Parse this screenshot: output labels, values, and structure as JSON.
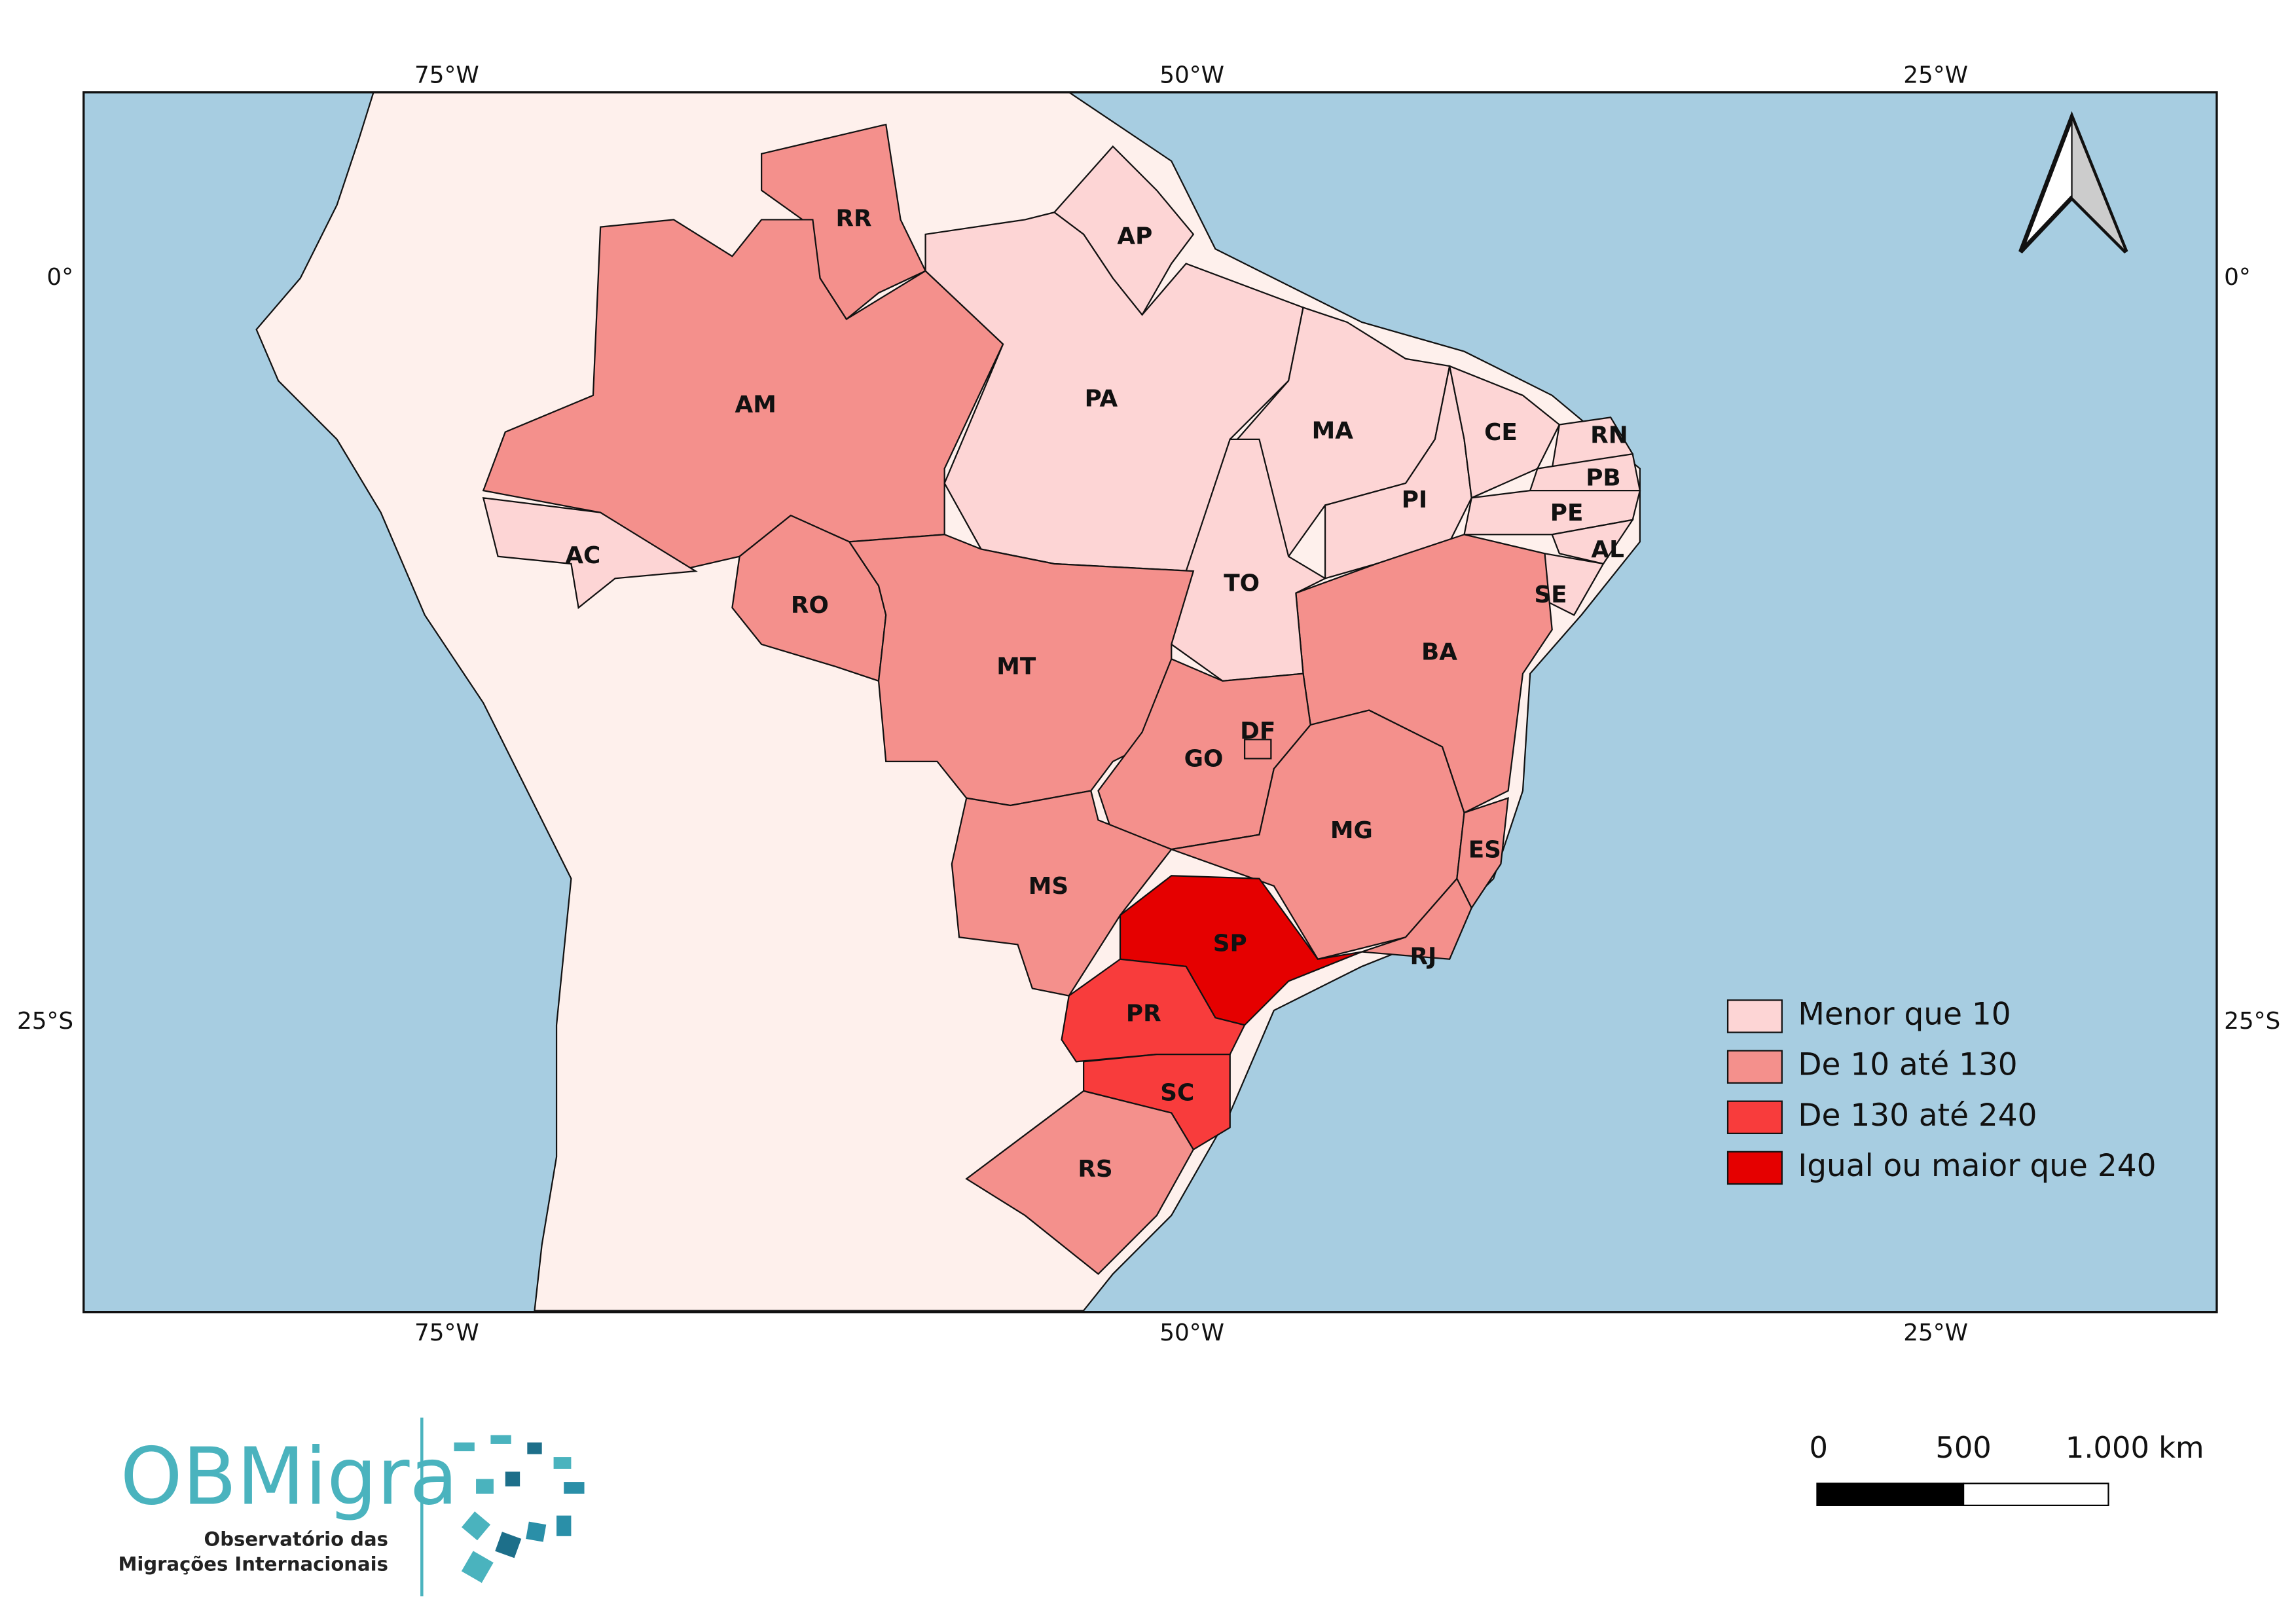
{
  "map": {
    "axis_labels": {
      "top": [
        "75°W",
        "50°W",
        "25°W"
      ],
      "bottom": [
        "75°W",
        "50°W",
        "25°W"
      ],
      "left": [
        "0°",
        "25°S"
      ],
      "right": [
        "0°",
        "25°S"
      ]
    },
    "states": [
      {
        "code": "RR",
        "color": "#f4908c"
      },
      {
        "code": "AM",
        "color": "#f4908c"
      },
      {
        "code": "AP",
        "color": "#fdd5d5"
      },
      {
        "code": "PA",
        "color": "#fdd5d5"
      },
      {
        "code": "MA",
        "color": "#fdd5d5"
      },
      {
        "code": "PI",
        "color": "#fdd5d5"
      },
      {
        "code": "CE",
        "color": "#fdd5d5"
      },
      {
        "code": "RN",
        "color": "#fdd5d5"
      },
      {
        "code": "PB",
        "color": "#fdd5d5"
      },
      {
        "code": "PE",
        "color": "#fdd5d5"
      },
      {
        "code": "AL",
        "color": "#fdd5d5"
      },
      {
        "code": "SE",
        "color": "#fdd5d5"
      },
      {
        "code": "BA",
        "color": "#f4908c"
      },
      {
        "code": "TO",
        "color": "#fdd5d5"
      },
      {
        "code": "AC",
        "color": "#fdd5d5"
      },
      {
        "code": "RO",
        "color": "#f4908c"
      },
      {
        "code": "MT",
        "color": "#f4908c"
      },
      {
        "code": "GO",
        "color": "#f4908c"
      },
      {
        "code": "DF",
        "color": "#f4908c"
      },
      {
        "code": "MG",
        "color": "#f4908c"
      },
      {
        "code": "ES",
        "color": "#f4908c"
      },
      {
        "code": "RJ",
        "color": "#f4908c"
      },
      {
        "code": "MS",
        "color": "#f4908c"
      },
      {
        "code": "SP",
        "color": "#e50000"
      },
      {
        "code": "PR",
        "color": "#f83c3c"
      },
      {
        "code": "SC",
        "color": "#f83c3c"
      },
      {
        "code": "RS",
        "color": "#f4908c"
      }
    ],
    "legend": [
      {
        "label": "Menor que 10",
        "color": "#fdd5d5"
      },
      {
        "label": "De 10 até 130",
        "color": "#f4908c"
      },
      {
        "label": "De 130 até 240",
        "color": "#f83c3c"
      },
      {
        "label": "Igual ou maior que 240",
        "color": "#e50000"
      }
    ],
    "scale_bar": {
      "labels": [
        "0",
        "500",
        "1.000 km"
      ]
    },
    "logo": {
      "name": "OBMigra",
      "line_1": "Observatório das",
      "line_2": "Migrações Internacionais"
    }
  }
}
